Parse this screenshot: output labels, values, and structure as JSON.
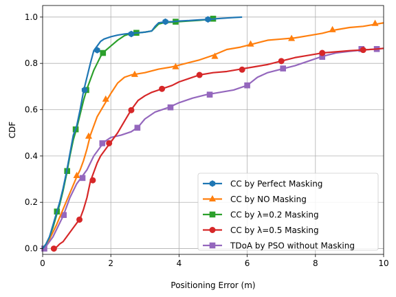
{
  "chart_data": {
    "type": "line",
    "title": "",
    "xlabel": "Positioning Error (m)",
    "ylabel": "CDF",
    "xlim": [
      0,
      10
    ],
    "ylim": [
      -0.025,
      1.05
    ],
    "xticks": [
      0,
      2,
      4,
      6,
      8,
      10
    ],
    "xtick_labels": [
      "0",
      "2",
      "4",
      "6",
      "8",
      "10"
    ],
    "yticks": [
      0.0,
      0.2,
      0.4,
      0.6,
      0.8,
      1.0
    ],
    "ytick_labels": [
      "0.0",
      "0.2",
      "0.4",
      "0.6",
      "0.8",
      "1.0"
    ],
    "grid": true,
    "legend_position": "lower-right",
    "series": [
      {
        "name": "CC by Perfect Masking",
        "color": "#1f77b4",
        "marker": "hexagon",
        "x": [
          0,
          0.1,
          0.2,
          0.3,
          0.4,
          0.5,
          0.6,
          0.7,
          0.8,
          0.9,
          1.0,
          1.1,
          1.2,
          1.3,
          1.4,
          1.5,
          1.6,
          1.7,
          1.8,
          2.0,
          2.2,
          2.4,
          2.6,
          2.8,
          3.0,
          3.2,
          3.3,
          3.4,
          3.6,
          3.8,
          4.0,
          4.3,
          4.6,
          4.9,
          5.1,
          5.4,
          5.6,
          5.85
        ],
        "y": [
          0,
          0.02,
          0.05,
          0.1,
          0.15,
          0.2,
          0.26,
          0.33,
          0.41,
          0.49,
          0.53,
          0.6,
          0.68,
          0.74,
          0.8,
          0.855,
          0.875,
          0.895,
          0.905,
          0.915,
          0.922,
          0.927,
          0.93,
          0.932,
          0.935,
          0.94,
          0.96,
          0.975,
          0.98,
          0.98,
          0.983,
          0.985,
          0.988,
          0.99,
          0.993,
          0.996,
          0.998,
          1.0
        ],
        "marker_x": [
          1.23,
          1.6,
          2.6,
          3.6,
          4.85
        ],
        "marker_y": [
          0.685,
          0.857,
          0.927,
          0.98,
          0.99
        ]
      },
      {
        "name": "CC by NO Masking",
        "color": "#ff7f0e",
        "marker": "triangle",
        "x": [
          0,
          0.2,
          0.4,
          0.6,
          0.8,
          1.0,
          1.1,
          1.2,
          1.3,
          1.4,
          1.6,
          1.8,
          2.0,
          2.2,
          2.4,
          2.6,
          2.8,
          3.0,
          3.4,
          3.8,
          4.2,
          4.6,
          5.0,
          5.4,
          5.8,
          6.2,
          6.6,
          7.0,
          7.4,
          7.8,
          8.2,
          8.6,
          9.0,
          9.4,
          9.8,
          10.0
        ],
        "y": [
          0,
          0.04,
          0.1,
          0.17,
          0.24,
          0.31,
          0.34,
          0.38,
          0.43,
          0.49,
          0.57,
          0.62,
          0.67,
          0.715,
          0.74,
          0.75,
          0.755,
          0.76,
          0.775,
          0.785,
          0.8,
          0.815,
          0.835,
          0.86,
          0.87,
          0.885,
          0.9,
          0.905,
          0.91,
          0.92,
          0.93,
          0.945,
          0.955,
          0.96,
          0.97,
          0.975
        ],
        "marker_x": [
          1.0,
          1.35,
          1.85,
          2.7,
          3.9,
          5.05,
          6.1,
          7.3,
          8.5,
          9.75
        ],
        "marker_y": [
          0.315,
          0.485,
          0.645,
          0.752,
          0.785,
          0.83,
          0.883,
          0.907,
          0.945,
          0.972
        ]
      },
      {
        "name": "CC by λ=0.2 Masking",
        "color": "#2ca02c",
        "marker": "square",
        "x": [
          0,
          0.1,
          0.2,
          0.3,
          0.4,
          0.5,
          0.6,
          0.7,
          0.8,
          0.9,
          1.0,
          1.1,
          1.2,
          1.3,
          1.4,
          1.5,
          1.6,
          1.7,
          1.8,
          2.0,
          2.2,
          2.4,
          2.6,
          2.8,
          3.0,
          3.2,
          3.3,
          3.4,
          3.6,
          3.8,
          4.0,
          4.3,
          4.6,
          4.9,
          5.0
        ],
        "y": [
          0,
          0.02,
          0.05,
          0.09,
          0.14,
          0.19,
          0.25,
          0.32,
          0.4,
          0.47,
          0.52,
          0.58,
          0.64,
          0.69,
          0.73,
          0.77,
          0.8,
          0.83,
          0.85,
          0.875,
          0.9,
          0.92,
          0.93,
          0.932,
          0.935,
          0.94,
          0.955,
          0.97,
          0.977,
          0.978,
          0.98,
          0.983,
          0.986,
          0.99,
          0.993
        ],
        "marker_x": [
          0.42,
          0.72,
          0.97,
          1.28,
          1.77,
          2.75,
          3.9,
          5.0
        ],
        "marker_y": [
          0.16,
          0.335,
          0.515,
          0.685,
          0.845,
          0.932,
          0.98,
          0.993
        ]
      },
      {
        "name": "CC by λ=0.5 Masking",
        "color": "#d62728",
        "marker": "circle",
        "x": [
          0.3,
          0.4,
          0.5,
          0.6,
          0.7,
          0.8,
          0.9,
          1.0,
          1.1,
          1.2,
          1.3,
          1.4,
          1.5,
          1.6,
          1.7,
          1.8,
          1.9,
          2.0,
          2.2,
          2.4,
          2.6,
          2.8,
          3.0,
          3.2,
          3.5,
          3.8,
          4.0,
          4.3,
          4.6,
          5.0,
          5.4,
          5.8,
          6.2,
          6.6,
          7.0,
          7.4,
          7.8,
          8.2,
          8.6,
          9.0,
          9.4,
          9.8,
          10.0
        ],
        "y": [
          0,
          0.005,
          0.02,
          0.03,
          0.05,
          0.07,
          0.09,
          0.11,
          0.13,
          0.17,
          0.22,
          0.29,
          0.33,
          0.37,
          0.4,
          0.42,
          0.44,
          0.46,
          0.5,
          0.55,
          0.6,
          0.64,
          0.66,
          0.675,
          0.69,
          0.705,
          0.72,
          0.735,
          0.75,
          0.76,
          0.765,
          0.775,
          0.785,
          0.795,
          0.81,
          0.825,
          0.835,
          0.845,
          0.85,
          0.855,
          0.858,
          0.862,
          0.865
        ],
        "marker_x": [
          0.33,
          1.08,
          1.47,
          1.95,
          2.6,
          3.5,
          4.6,
          5.85,
          7.0,
          8.2,
          9.4
        ],
        "marker_y": [
          0.0,
          0.125,
          0.295,
          0.455,
          0.598,
          0.69,
          0.75,
          0.773,
          0.81,
          0.845,
          0.858
        ]
      },
      {
        "name": "TDoA by PSO without Masking",
        "color": "#9467bd",
        "marker": "square",
        "x": [
          0,
          0.1,
          0.2,
          0.3,
          0.4,
          0.5,
          0.6,
          0.7,
          0.8,
          0.9,
          1.0,
          1.1,
          1.2,
          1.3,
          1.4,
          1.5,
          1.6,
          1.7,
          1.8,
          2.0,
          2.3,
          2.6,
          2.8,
          3.0,
          3.3,
          3.7,
          4.0,
          4.4,
          4.8,
          5.2,
          5.6,
          6.0,
          6.3,
          6.6,
          7.0,
          7.4,
          7.8,
          8.2,
          8.6,
          9.0,
          9.4,
          9.8,
          10.0
        ],
        "y": [
          0,
          0.01,
          0.03,
          0.05,
          0.08,
          0.11,
          0.14,
          0.18,
          0.22,
          0.25,
          0.28,
          0.3,
          0.32,
          0.34,
          0.37,
          0.4,
          0.42,
          0.44,
          0.46,
          0.48,
          0.49,
          0.505,
          0.525,
          0.56,
          0.59,
          0.61,
          0.63,
          0.65,
          0.665,
          0.675,
          0.685,
          0.705,
          0.74,
          0.76,
          0.775,
          0.79,
          0.81,
          0.83,
          0.845,
          0.852,
          0.858,
          0.862,
          0.865
        ],
        "marker_x": [
          0.05,
          0.62,
          1.17,
          1.75,
          2.78,
          3.75,
          4.9,
          6.0,
          7.05,
          8.2,
          9.35,
          9.8
        ],
        "marker_y": [
          0.0,
          0.145,
          0.305,
          0.455,
          0.522,
          0.61,
          0.665,
          0.705,
          0.778,
          0.828,
          0.862,
          0.862
        ]
      }
    ]
  }
}
